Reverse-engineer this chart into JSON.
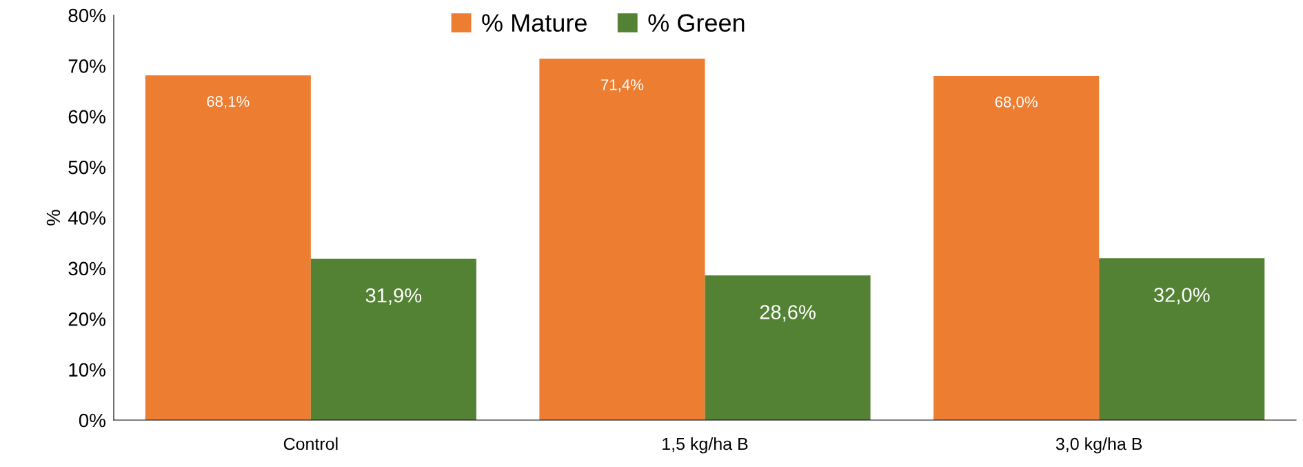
{
  "chart_data": {
    "type": "bar",
    "ylabel": "%",
    "categories": [
      "Control",
      "1,5 kg/ha B",
      "3,0 kg/ha B"
    ],
    "series": [
      {
        "name": "% Mature",
        "color": "#ed7d31",
        "values": [
          68.1,
          71.4,
          68.0
        ],
        "value_labels": [
          "68,1%",
          "71,4%",
          "68,0%"
        ]
      },
      {
        "name": "% Green",
        "color": "#548235",
        "values": [
          31.9,
          28.6,
          32.0
        ],
        "value_labels": [
          "31,9%",
          "28,6%",
          "32,0%"
        ]
      }
    ],
    "ylim": [
      0,
      80
    ],
    "yticks": [
      {
        "value": 0,
        "label": "0%"
      },
      {
        "value": 10,
        "label": "10%"
      },
      {
        "value": 20,
        "label": "20%"
      },
      {
        "value": 30,
        "label": "30%"
      },
      {
        "value": 40,
        "label": "40%"
      },
      {
        "value": 50,
        "label": "50%"
      },
      {
        "value": 60,
        "label": "60%"
      },
      {
        "value": 70,
        "label": "70%"
      },
      {
        "value": 80,
        "label": "80%"
      }
    ],
    "grid": false,
    "legend": "top"
  }
}
